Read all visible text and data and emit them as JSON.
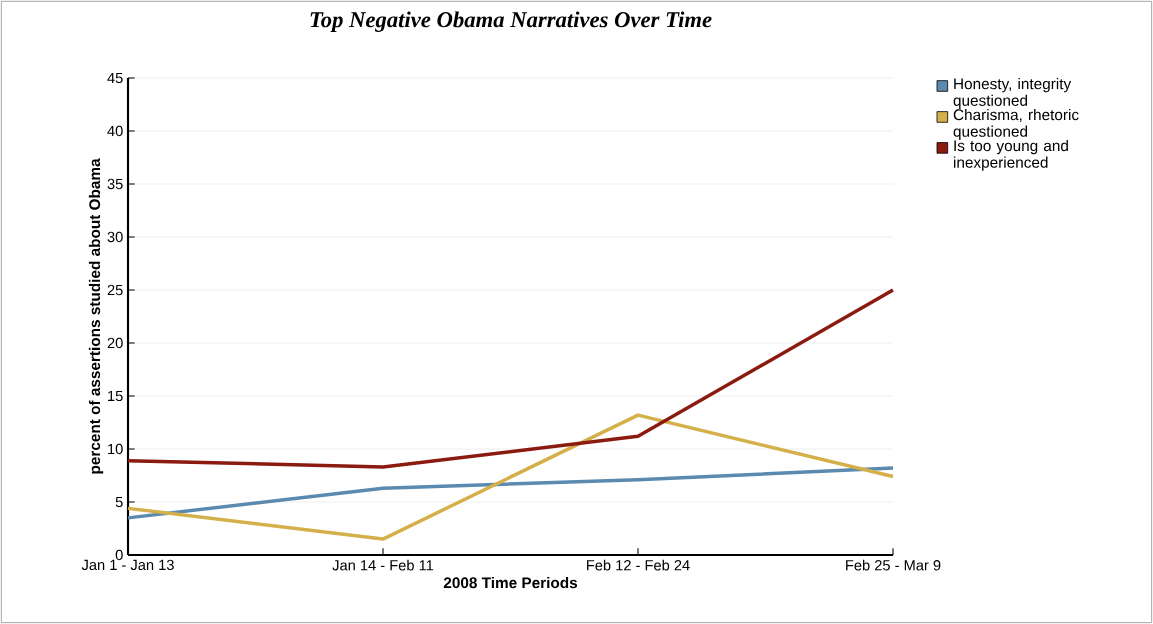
{
  "chart_data": {
    "type": "line",
    "title": "Top Negative Obama Narratives Over Time",
    "xlabel": "2008 Time Periods",
    "ylabel": "percent of assertions studied about Obama",
    "categories": [
      "Jan 1 - Jan 13",
      "Jan 14 - Feb 11",
      "Feb 12 - Feb 24",
      "Feb 25 - Mar 9"
    ],
    "series": [
      {
        "name": "Honesty, integrity questioned",
        "color": "#5b8ab0",
        "values": [
          3.5,
          6.3,
          7.1,
          8.2
        ]
      },
      {
        "name": "Charisma, rhetoric questioned",
        "color": "#d4b04a",
        "values": [
          4.4,
          1.5,
          13.2,
          7.4
        ]
      },
      {
        "name": "Is too young and inexperienced",
        "color": "#8b1a10",
        "values": [
          8.9,
          8.3,
          11.2,
          25
        ]
      }
    ],
    "ylim": [
      0,
      45
    ],
    "yticks": [
      0,
      5,
      10,
      15,
      20,
      25,
      30,
      35,
      40,
      45
    ],
    "grid": "y",
    "legend": "top right",
    "marker": "none",
    "line_style": "solid"
  }
}
